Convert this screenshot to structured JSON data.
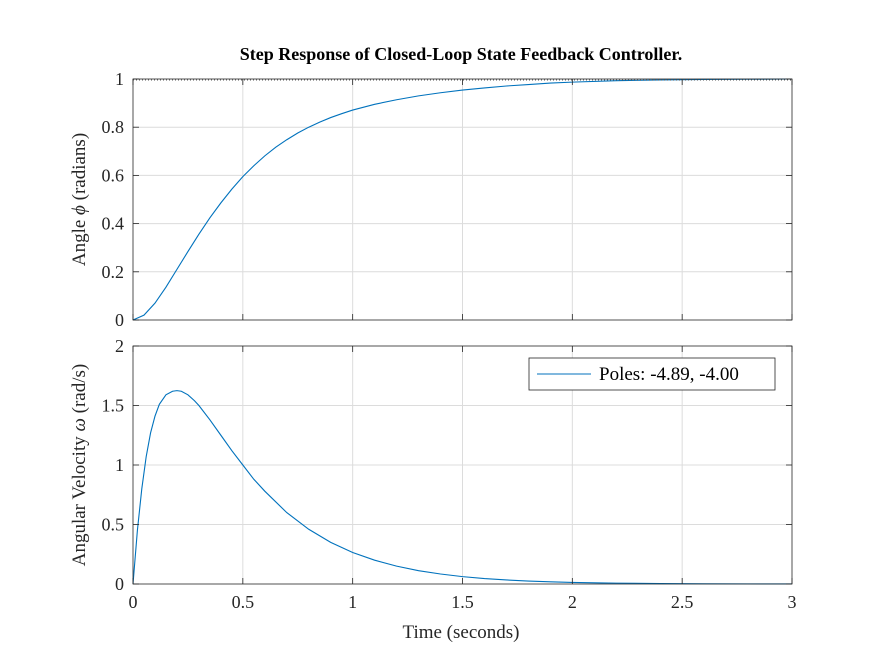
{
  "figure": {
    "title": "Step Response of Closed-Loop State Feedback Controller.",
    "xlabel": "Time (seconds)"
  },
  "chart_data": [
    {
      "type": "line",
      "title": "Step Response of Closed-Loop State Feedback Controller.",
      "ylabel_prefix": "Angle ",
      "ylabel_symbol": "ϕ",
      "ylabel_suffix": " (radians)",
      "xlabel": "",
      "xlim": [
        0,
        3
      ],
      "ylim": [
        0,
        1
      ],
      "xticks": [
        0,
        0.5,
        1,
        1.5,
        2,
        2.5,
        3
      ],
      "yticks": [
        0,
        0.2,
        0.4,
        0.6,
        0.8,
        1
      ],
      "xtick_labels": [],
      "ytick_labels": [
        "0",
        "0.2",
        "0.4",
        "0.6",
        "0.8",
        "1"
      ],
      "grid": true,
      "series_color": "#0072BD",
      "series": [
        {
          "x": [
            0,
            0.05,
            0.1,
            0.15,
            0.2,
            0.25,
            0.3,
            0.35,
            0.4,
            0.45,
            0.5,
            0.55,
            0.6,
            0.65,
            0.7,
            0.75,
            0.8,
            0.85,
            0.9,
            0.95,
            1.0,
            1.1,
            1.2,
            1.3,
            1.4,
            1.5,
            1.6,
            1.7,
            1.8,
            1.9,
            2.0,
            2.2,
            2.4,
            2.6,
            2.8,
            3.0
          ],
          "values": [
            0,
            0.02,
            0.07,
            0.136,
            0.21,
            0.284,
            0.356,
            0.424,
            0.486,
            0.543,
            0.595,
            0.64,
            0.681,
            0.717,
            0.748,
            0.776,
            0.8,
            0.821,
            0.84,
            0.856,
            0.871,
            0.895,
            0.914,
            0.93,
            0.943,
            0.954,
            0.963,
            0.971,
            0.977,
            0.983,
            0.987,
            0.993,
            0.996,
            0.998,
            0.999,
            1.0
          ]
        }
      ]
    },
    {
      "type": "line",
      "title": "",
      "ylabel_prefix": "Angular Velocity ",
      "ylabel_symbol": "ω",
      "ylabel_suffix": " (rad/s)",
      "xlabel": "Time (seconds)",
      "xlim": [
        0,
        3
      ],
      "ylim": [
        0,
        2
      ],
      "xticks": [
        0,
        0.5,
        1,
        1.5,
        2,
        2.5,
        3
      ],
      "yticks": [
        0,
        0.5,
        1,
        1.5,
        2
      ],
      "xtick_labels": [
        "0",
        "0.5",
        "1",
        "1.5",
        "2",
        "2.5",
        "3"
      ],
      "ytick_labels": [
        "0",
        "0.5",
        "1",
        "1.5",
        "2"
      ],
      "grid": true,
      "legend": "top-right",
      "series_color": "#0072BD",
      "series": [
        {
          "name": "Poles: -4.89, -4.00",
          "x": [
            0,
            0.02,
            0.04,
            0.06,
            0.08,
            0.1,
            0.12,
            0.15,
            0.18,
            0.2,
            0.22,
            0.25,
            0.28,
            0.3,
            0.35,
            0.4,
            0.45,
            0.5,
            0.55,
            0.6,
            0.7,
            0.8,
            0.9,
            1.0,
            1.1,
            1.2,
            1.3,
            1.4,
            1.5,
            1.6,
            1.7,
            1.8,
            1.9,
            2.0,
            2.2,
            2.4,
            2.6,
            2.8,
            3.0
          ],
          "values": [
            0,
            0.45,
            0.8,
            1.07,
            1.27,
            1.41,
            1.51,
            1.59,
            1.62,
            1.625,
            1.62,
            1.59,
            1.54,
            1.5,
            1.38,
            1.25,
            1.12,
            1.0,
            0.88,
            0.78,
            0.6,
            0.46,
            0.35,
            0.265,
            0.2,
            0.15,
            0.112,
            0.084,
            0.062,
            0.046,
            0.034,
            0.025,
            0.018,
            0.013,
            0.007,
            0.004,
            0.002,
            0.001,
            0.0005
          ]
        }
      ]
    }
  ]
}
